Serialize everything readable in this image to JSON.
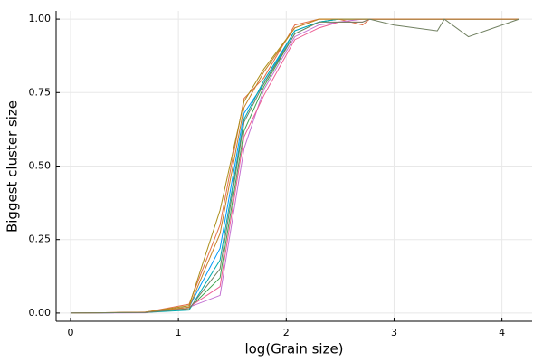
{
  "chart_data": {
    "type": "line",
    "xlabel": "log(Grain size)",
    "ylabel": "Biggest cluster size",
    "x": [
      0,
      0.693,
      1.099,
      1.386,
      1.609,
      1.792,
      2.079,
      2.303,
      2.485,
      2.708,
      2.773,
      2.996,
      3.401,
      3.466,
      3.689,
      4.159
    ],
    "series": [
      {
        "color": "#009afa",
        "values": [
          0,
          0.002,
          0.02,
          0.22,
          0.68,
          0.78,
          0.96,
          0.99,
          1.0,
          1.0,
          1.0,
          1.0,
          1.0,
          1.0,
          1.0,
          1.0
        ]
      },
      {
        "color": "#e36f47",
        "values": [
          0,
          0.003,
          0.03,
          0.3,
          0.73,
          0.8,
          0.98,
          1.0,
          1.0,
          0.98,
          1.0,
          1.0,
          1.0,
          1.0,
          1.0,
          1.0
        ]
      },
      {
        "color": "#3ea44e",
        "values": [
          0,
          0.002,
          0.015,
          0.12,
          0.62,
          0.77,
          0.95,
          0.99,
          1.0,
          1.0,
          1.0,
          1.0,
          1.0,
          1.0,
          1.0,
          1.0
        ]
      },
      {
        "color": "#c371d2",
        "values": [
          0,
          0.001,
          0.02,
          0.06,
          0.56,
          0.76,
          0.94,
          0.98,
          0.99,
          1.0,
          1.0,
          1.0,
          1.0,
          1.0,
          1.0,
          1.0
        ]
      },
      {
        "color": "#ac8e18",
        "values": [
          0,
          0.003,
          0.025,
          0.35,
          0.72,
          0.83,
          0.97,
          1.0,
          1.0,
          1.0,
          1.0,
          1.0,
          1.0,
          1.0,
          1.0,
          1.0
        ]
      },
      {
        "color": "#00aaae",
        "values": [
          0,
          0.002,
          0.01,
          0.18,
          0.66,
          0.79,
          0.96,
          0.99,
          1.0,
          1.0,
          1.0,
          1.0,
          1.0,
          1.0,
          1.0,
          1.0
        ]
      },
      {
        "color": "#ed5e93",
        "values": [
          0,
          0.002,
          0.02,
          0.09,
          0.6,
          0.74,
          0.93,
          0.97,
          0.99,
          0.99,
          1.0,
          1.0,
          1.0,
          1.0,
          1.0,
          1.0
        ]
      },
      {
        "color": "#c68225",
        "values": [
          0,
          0.003,
          0.02,
          0.27,
          0.7,
          0.82,
          0.97,
          1.0,
          1.0,
          1.0,
          1.0,
          1.0,
          1.0,
          1.0,
          1.0,
          1.0
        ]
      },
      {
        "color": "#6f7f5f",
        "values": [
          0,
          0.002,
          0.015,
          0.15,
          0.65,
          0.78,
          0.95,
          0.99,
          0.99,
          0.99,
          1.0,
          0.98,
          0.96,
          1.0,
          0.94,
          1.0
        ]
      }
    ],
    "xlim": [
      -0.134,
      4.28
    ],
    "ylim": [
      -0.028,
      1.028
    ],
    "xticks": [
      0,
      1,
      2,
      3,
      4
    ],
    "yticks": [
      {
        "value": 0,
        "label": "0.00"
      },
      {
        "value": 0.25,
        "label": "0.25"
      },
      {
        "value": 0.5,
        "label": "0.50"
      },
      {
        "value": 0.75,
        "label": "0.75"
      },
      {
        "value": 1,
        "label": "1.00"
      }
    ],
    "grid": true
  }
}
